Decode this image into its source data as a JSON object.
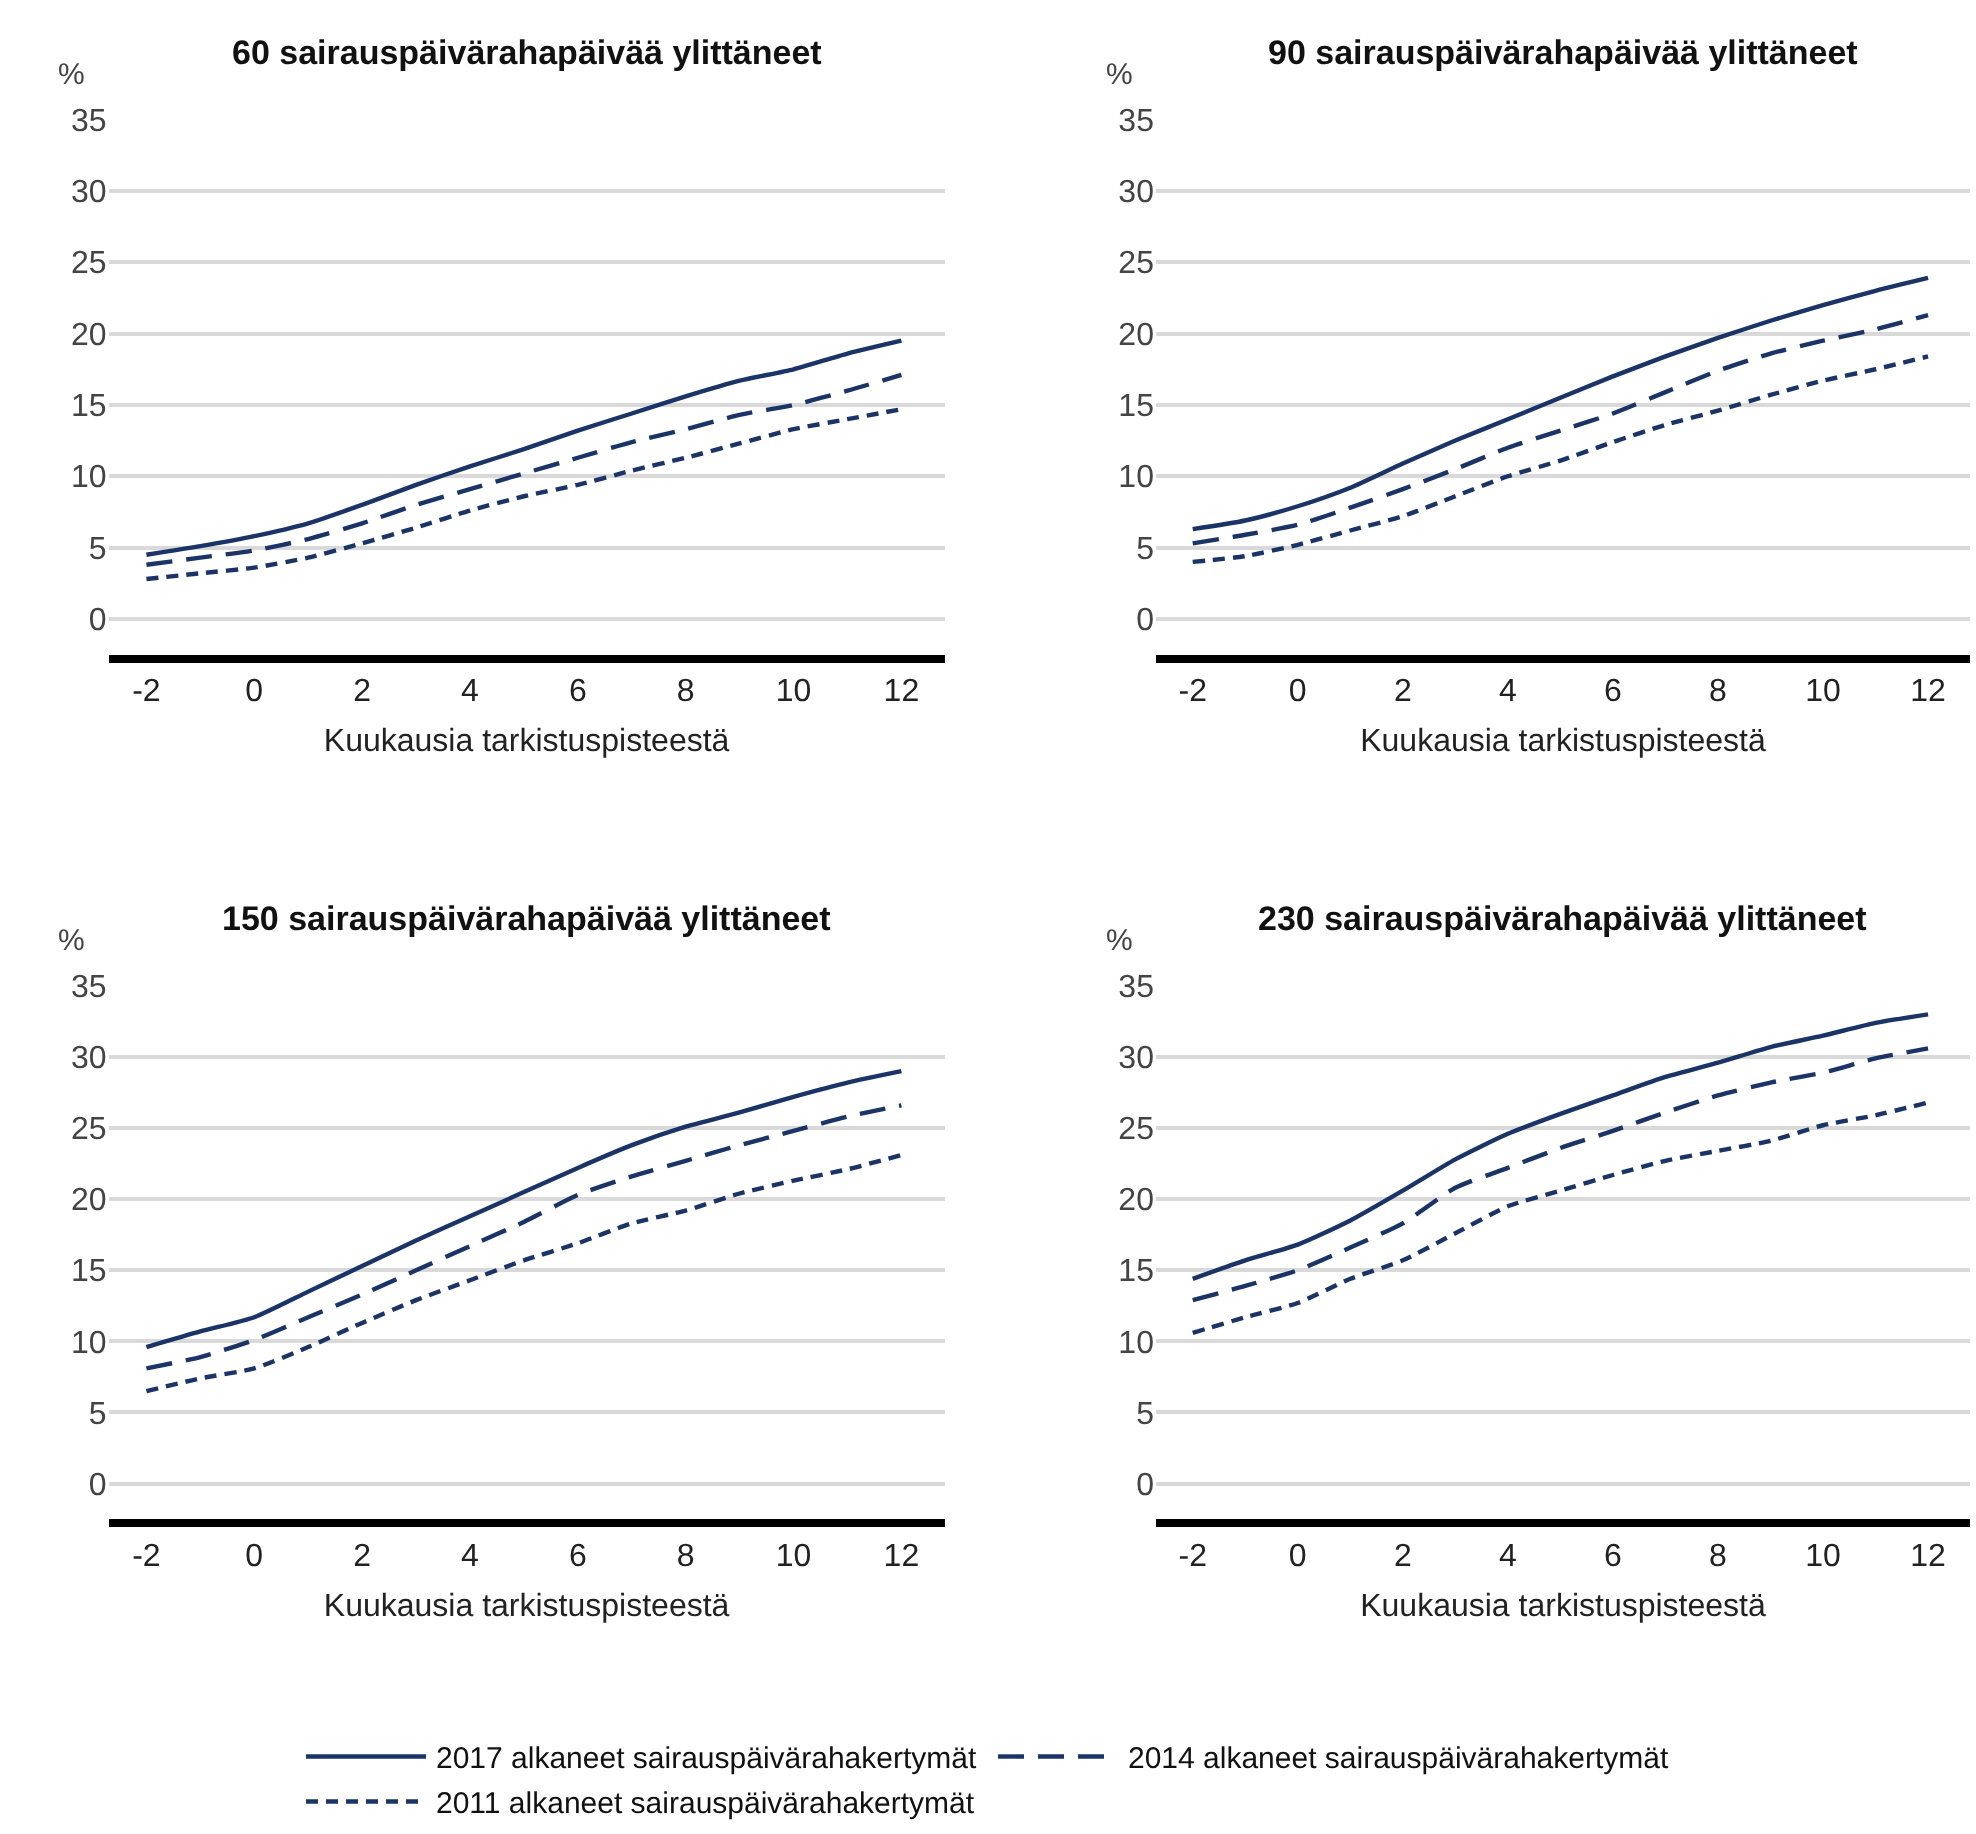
{
  "chart_data": [
    {
      "type": "line",
      "title": "60 sairauspäivärahapäivää ylittäneet",
      "xlabel": "Kuukausia tarkistuspisteestä",
      "ylabel": "%",
      "x": [
        -2,
        -1,
        0,
        1,
        2,
        3,
        4,
        5,
        6,
        7,
        8,
        9,
        10,
        11,
        12
      ],
      "xlim": [
        -2.7,
        12.8
      ],
      "xticks": [
        -2,
        0,
        2,
        4,
        6,
        8,
        10,
        12
      ],
      "ylim": [
        -2.5,
        35
      ],
      "yticks": [
        0,
        5,
        10,
        15,
        20,
        25,
        30,
        35
      ],
      "grid": "y",
      "legend": "bottom",
      "series": [
        {
          "name": "2017 alkaneet sairauspäivärahakertymät",
          "color": "#1b3468",
          "line_style": "solid",
          "values": [
            4.5,
            5.1,
            5.8,
            6.7,
            8.0,
            9.4,
            10.7,
            11.9,
            13.2,
            14.4,
            15.6,
            16.7,
            17.5,
            18.6,
            19.5
          ]
        },
        {
          "name": "2014 alkaneet sairauspäivärahakertymät",
          "color": "#1b3468",
          "line_style": "dashed",
          "values": [
            3.8,
            4.3,
            4.8,
            5.6,
            6.7,
            8.0,
            9.1,
            10.2,
            11.3,
            12.4,
            13.3,
            14.3,
            15.0,
            16.0,
            17.1
          ]
        },
        {
          "name": "2011 alkaneet sairauspäivärahakertymät",
          "color": "#1b3468",
          "line_style": "dotted",
          "values": [
            2.8,
            3.2,
            3.6,
            4.3,
            5.3,
            6.4,
            7.6,
            8.6,
            9.4,
            10.4,
            11.3,
            12.3,
            13.3,
            14.0,
            14.7
          ]
        }
      ]
    },
    {
      "type": "line",
      "title": "90 sairauspäivärahapäivää ylittäneet",
      "xlabel": "Kuukausia tarkistuspisteestä",
      "ylabel": "%",
      "x": [
        -2,
        -1,
        0,
        1,
        2,
        3,
        4,
        5,
        6,
        7,
        8,
        9,
        10,
        11,
        12
      ],
      "xlim": [
        -2.7,
        12.8
      ],
      "xticks": [
        -2,
        0,
        2,
        4,
        6,
        8,
        10,
        12
      ],
      "ylim": [
        -2.5,
        35
      ],
      "yticks": [
        0,
        5,
        10,
        15,
        20,
        25,
        30,
        35
      ],
      "grid": "y",
      "series": [
        {
          "color": "#1b3468",
          "line_style": "solid",
          "values": [
            6.3,
            6.9,
            7.9,
            9.2,
            10.9,
            12.5,
            14.0,
            15.5,
            17.0,
            18.4,
            19.7,
            20.9,
            22.0,
            23.0,
            23.9
          ]
        },
        {
          "color": "#1b3468",
          "line_style": "dashed",
          "values": [
            5.3,
            5.9,
            6.6,
            7.8,
            9.1,
            10.5,
            12.0,
            13.2,
            14.4,
            15.9,
            17.4,
            18.6,
            19.5,
            20.3,
            21.3
          ]
        },
        {
          "color": "#1b3468",
          "line_style": "dotted",
          "values": [
            4.0,
            4.4,
            5.2,
            6.2,
            7.2,
            8.6,
            10.0,
            11.1,
            12.4,
            13.6,
            14.6,
            15.7,
            16.7,
            17.5,
            18.4
          ]
        }
      ]
    },
    {
      "type": "line",
      "title": "150 sairauspäivärahapäivää ylittäneet",
      "xlabel": "Kuukausia tarkistuspisteestä",
      "ylabel": "%",
      "x": [
        -2,
        -1,
        0,
        1,
        2,
        3,
        4,
        5,
        6,
        7,
        8,
        9,
        10,
        11,
        12
      ],
      "xlim": [
        -2.7,
        12.8
      ],
      "xticks": [
        -2,
        0,
        2,
        4,
        6,
        8,
        10,
        12
      ],
      "ylim": [
        -2.5,
        35
      ],
      "yticks": [
        0,
        5,
        10,
        15,
        20,
        25,
        30,
        35
      ],
      "grid": "y",
      "series": [
        {
          "color": "#1b3468",
          "line_style": "solid",
          "values": [
            9.6,
            10.7,
            11.7,
            13.5,
            15.3,
            17.1,
            18.8,
            20.5,
            22.2,
            23.8,
            25.1,
            26.1,
            27.2,
            28.2,
            29.0
          ]
        },
        {
          "color": "#1b3468",
          "line_style": "dashed",
          "values": [
            8.1,
            8.9,
            10.1,
            11.7,
            13.3,
            15.0,
            16.7,
            18.4,
            20.3,
            21.6,
            22.7,
            23.8,
            24.8,
            25.8,
            26.6
          ]
        },
        {
          "color": "#1b3468",
          "line_style": "dotted",
          "values": [
            6.5,
            7.4,
            8.1,
            9.6,
            11.3,
            12.9,
            14.3,
            15.7,
            16.9,
            18.3,
            19.2,
            20.4,
            21.3,
            22.1,
            23.1
          ]
        }
      ]
    },
    {
      "type": "line",
      "title": "230 sairauspäivärahapäivää ylittäneet",
      "xlabel": "Kuukausia tarkistuspisteestä",
      "ylabel": "%",
      "x": [
        -2,
        -1,
        0,
        1,
        2,
        3,
        4,
        5,
        6,
        7,
        8,
        9,
        10,
        11,
        12
      ],
      "xlim": [
        -2.7,
        12.8
      ],
      "xticks": [
        -2,
        0,
        2,
        4,
        6,
        8,
        10,
        12
      ],
      "ylim": [
        -2.5,
        35
      ],
      "yticks": [
        0,
        5,
        10,
        15,
        20,
        25,
        30,
        35
      ],
      "grid": "y",
      "series": [
        {
          "color": "#1b3468",
          "line_style": "solid",
          "values": [
            14.4,
            15.7,
            16.8,
            18.5,
            20.6,
            22.8,
            24.6,
            26.0,
            27.3,
            28.6,
            29.6,
            30.7,
            31.5,
            32.4,
            33.0
          ]
        },
        {
          "color": "#1b3468",
          "line_style": "dashed",
          "values": [
            12.9,
            13.9,
            15.0,
            16.6,
            18.3,
            20.8,
            22.2,
            23.6,
            24.8,
            26.1,
            27.3,
            28.2,
            28.9,
            29.9,
            30.6
          ]
        },
        {
          "color": "#1b3468",
          "line_style": "dotted",
          "values": [
            10.6,
            11.7,
            12.7,
            14.4,
            15.7,
            17.6,
            19.5,
            20.6,
            21.7,
            22.7,
            23.4,
            24.1,
            25.2,
            25.9,
            26.8
          ]
        }
      ]
    }
  ]
}
